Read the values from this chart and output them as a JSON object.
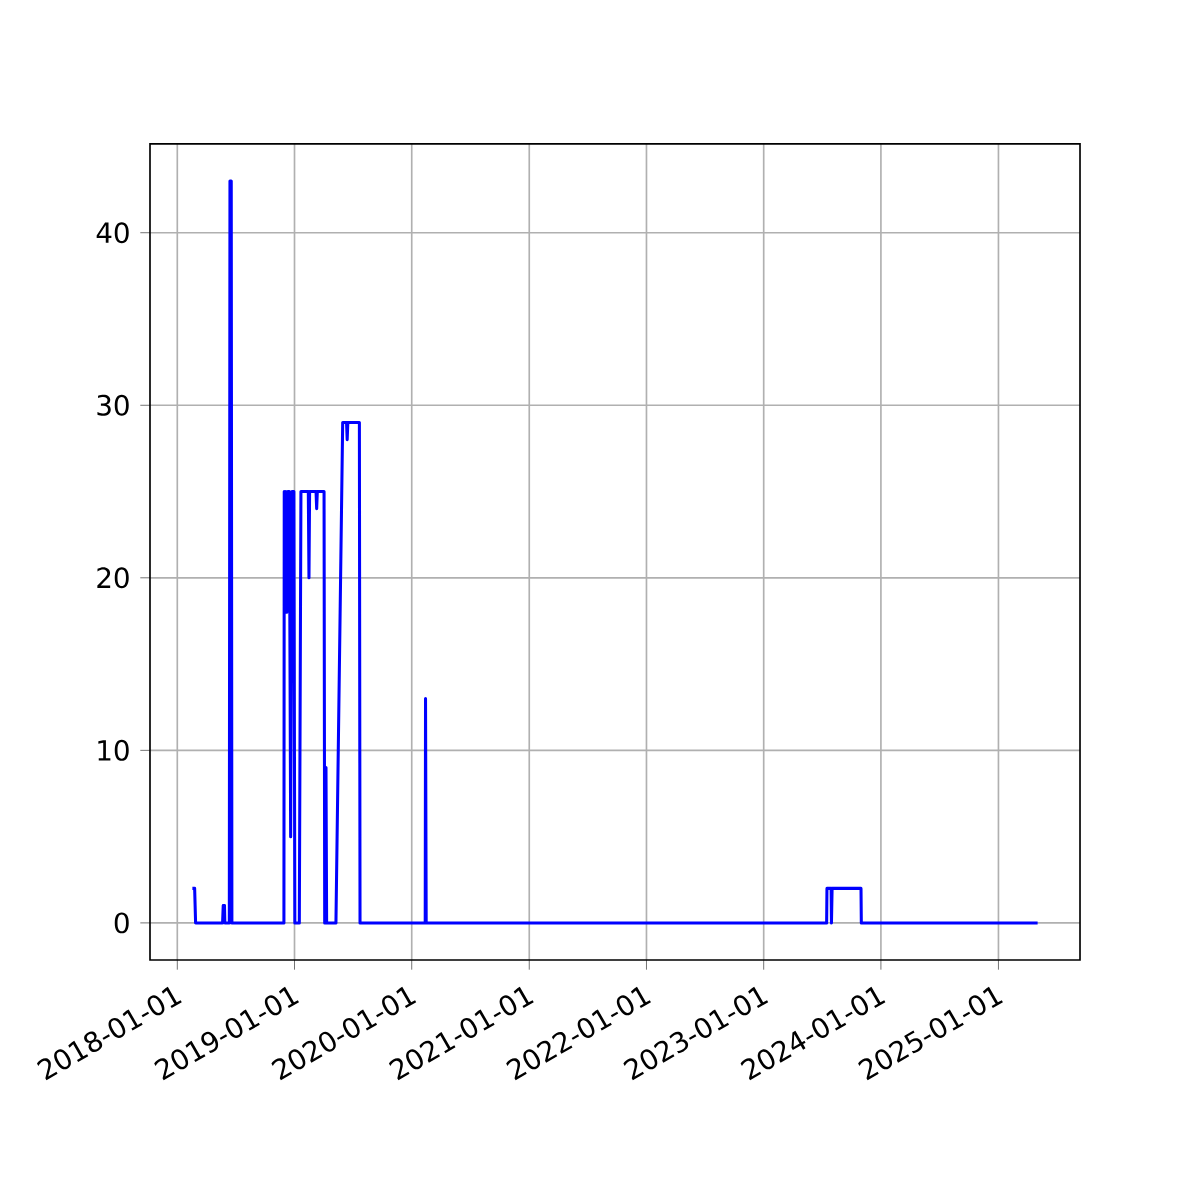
{
  "chart_data": {
    "type": "line",
    "color": "#0000ff",
    "grid": true,
    "x": [
      "2018-02-17",
      "2018-02-24",
      "2018-02-27",
      "2018-05-22",
      "2018-05-24",
      "2018-05-28",
      "2018-05-29",
      "2018-06-12",
      "2018-06-14",
      "2018-06-18",
      "2018-06-20",
      "2018-11-29",
      "2018-11-30",
      "2018-12-03",
      "2018-12-05",
      "2018-12-08",
      "2018-12-11",
      "2018-12-16",
      "2018-12-20",
      "2018-12-24",
      "2018-12-30",
      "2019-01-02",
      "2019-01-16",
      "2019-01-21",
      "2019-02-13",
      "2019-02-15",
      "2019-02-17",
      "2019-03-09",
      "2019-03-11",
      "2019-03-13",
      "2019-04-03",
      "2019-04-05",
      "2019-04-09",
      "2019-04-11",
      "2019-05-10",
      "2019-05-31",
      "2019-06-12",
      "2019-06-14",
      "2019-06-16",
      "2019-07-22",
      "2019-07-24",
      "2020-02-12",
      "2020-02-13",
      "2020-02-15",
      "2023-07-16",
      "2023-07-17",
      "2023-07-30",
      "2023-07-31",
      "2023-08-02",
      "2023-08-03",
      "2023-10-31",
      "2023-11-01",
      "2025-05-03"
    ],
    "values": [
      2,
      2,
      0,
      0,
      1,
      1,
      0,
      0,
      43,
      43,
      0,
      0,
      25,
      21,
      25,
      18,
      25,
      25,
      5,
      25,
      25,
      0,
      0,
      25,
      25,
      20,
      25,
      25,
      24,
      25,
      25,
      0,
      9,
      0,
      0,
      29,
      29,
      28,
      29,
      29,
      0,
      0,
      13,
      0,
      0,
      2,
      2,
      0,
      2,
      2,
      2,
      0,
      0
    ],
    "xlim": [
      "2017-10-08",
      "2025-09-12"
    ],
    "ylim": [
      -2.15,
      45.15
    ],
    "xticks": [
      "2018-01-01",
      "2019-01-01",
      "2020-01-01",
      "2021-01-01",
      "2022-01-01",
      "2023-01-01",
      "2024-01-01",
      "2025-01-01"
    ],
    "yticks": [
      0,
      10,
      20,
      30,
      40
    ]
  }
}
